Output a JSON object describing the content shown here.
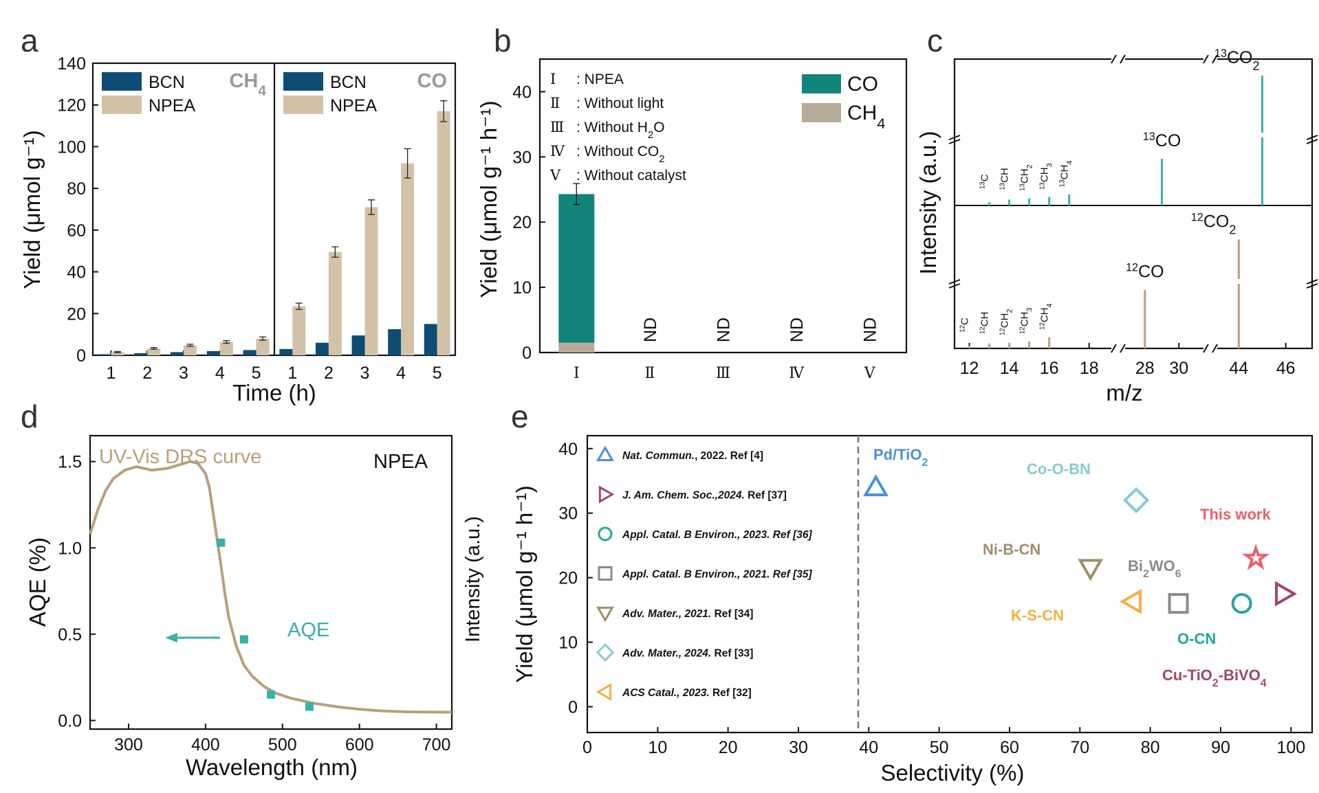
{
  "panels": [
    {
      "letter": "a"
    },
    {
      "letter": "b"
    },
    {
      "letter": "c"
    },
    {
      "letter": "d"
    },
    {
      "letter": "e"
    }
  ],
  "colors": {
    "bcn": "#0f4c75",
    "npea": "#d2c3a8",
    "co": "#12857a",
    "ch4": "#b8aa99",
    "teal": "#39b0a8",
    "tan": "#b7a07b",
    "dash": "#777777"
  },
  "chart_data": [
    {
      "panel": "a",
      "type": "bar",
      "ylabel": "Yield (μmol g⁻¹)",
      "xlabel": "Time (h)",
      "ylim": [
        0,
        140
      ],
      "yticks": [
        0,
        20,
        40,
        60,
        80,
        100,
        120,
        140
      ],
      "subpanels": [
        {
          "label": "CH₄",
          "categories": [
            "1",
            "2",
            "3",
            "4",
            "5"
          ],
          "series": [
            {
              "name": "BCN",
              "values": [
                0.5,
                1.0,
                1.5,
                2.0,
                2.5
              ]
            },
            {
              "name": "NPEA",
              "values": [
                1.5,
                3.3,
                4.8,
                6.4,
                8.0
              ]
            }
          ],
          "errors": [
            {
              "name": "NPEA",
              "values": [
                0.3,
                0.4,
                0.5,
                0.6,
                0.8
              ]
            }
          ]
        },
        {
          "label": "CO",
          "categories": [
            "1",
            "2",
            "3",
            "4",
            "5"
          ],
          "series": [
            {
              "name": "BCN",
              "values": [
                3,
                6,
                9.5,
                12.5,
                15
              ]
            },
            {
              "name": "NPEA",
              "values": [
                23.5,
                49.5,
                71,
                92,
                117
              ]
            }
          ],
          "errors": [
            {
              "name": "NPEA",
              "values": [
                1.5,
                2.5,
                3.5,
                7,
                5
              ]
            }
          ]
        }
      ]
    },
    {
      "panel": "b",
      "type": "bar",
      "ylabel": "Yield (μmol g⁻¹ h⁻¹)",
      "ylim": [
        0,
        45
      ],
      "yticks": [
        0,
        10,
        20,
        30,
        40
      ],
      "categories": [
        "Ⅰ",
        "Ⅱ",
        "Ⅲ",
        "Ⅳ",
        "Ⅴ"
      ],
      "series": [
        {
          "name": "CO",
          "values": [
            22.8,
            0,
            0,
            0,
            0
          ]
        },
        {
          "name": "CH₄",
          "values": [
            1.5,
            0,
            0,
            0,
            0
          ]
        }
      ],
      "error_total": 1.6,
      "nd_label": "ND",
      "conditions": [
        {
          "num": "Ⅰ",
          "text": ": NPEA"
        },
        {
          "num": "Ⅱ",
          "text": ": Without light"
        },
        {
          "num": "Ⅲ",
          "text": ": Without H",
          "sub": "2",
          "after": "O"
        },
        {
          "num": "Ⅳ",
          "text": ": Without CO",
          "sub": "2",
          "after": ""
        },
        {
          "num": "Ⅴ",
          "text": ": Without catalyst"
        }
      ]
    },
    {
      "panel": "c",
      "type": "bar",
      "ylabel": "Intensity (a.u.)",
      "xlabel": "m/z",
      "xticks": [
        "12",
        "14",
        "16",
        "18",
        "28",
        "30",
        "44",
        "46"
      ],
      "top": {
        "peaks": [
          {
            "mz": 13,
            "h": 0.025,
            "sup": "13",
            "base": "C",
            "sub": ""
          },
          {
            "mz": 14,
            "h": 0.045,
            "sup": "13",
            "base": "CH",
            "sub": ""
          },
          {
            "mz": 15,
            "h": 0.055,
            "sup": "13",
            "base": "CH",
            "sub": "2"
          },
          {
            "mz": 16,
            "h": 0.065,
            "sup": "13",
            "base": "CH",
            "sub": "3"
          },
          {
            "mz": 17,
            "h": 0.085,
            "sup": "13",
            "base": "CH",
            "sub": "4"
          },
          {
            "mz": 29,
            "h": 0.36,
            "sup": "13",
            "base": "CO",
            "sub": ""
          },
          {
            "mz": 45,
            "h": 1.0,
            "sup": "13",
            "base": "CO",
            "sub": "2"
          }
        ]
      },
      "bottom": {
        "peaks": [
          {
            "mz": 12,
            "h": 0.02,
            "sup": "12",
            "base": "C",
            "sub": ""
          },
          {
            "mz": 13,
            "h": 0.035,
            "sup": "12",
            "base": "CH",
            "sub": ""
          },
          {
            "mz": 14,
            "h": 0.04,
            "sup": "12",
            "base": "CH",
            "sub": "2"
          },
          {
            "mz": 15,
            "h": 0.05,
            "sup": "12",
            "base": "CH",
            "sub": "3"
          },
          {
            "mz": 16,
            "h": 0.08,
            "sup": "12",
            "base": "CH",
            "sub": "4"
          },
          {
            "mz": 28,
            "h": 0.42,
            "sup": "12",
            "base": "CO",
            "sub": ""
          },
          {
            "mz": 44,
            "h": 0.78,
            "sup": "12",
            "base": "CO",
            "sub": "2"
          }
        ]
      }
    },
    {
      "panel": "d",
      "type": "line",
      "xlabel": "Wavelength (nm)",
      "ylabel": "AQE (%)",
      "xlim": [
        250,
        720
      ],
      "ylim": [
        -0.05,
        1.65
      ],
      "xticks": [
        300,
        400,
        500,
        600,
        700
      ],
      "yticks": [
        0.0,
        0.5,
        1.0,
        1.5
      ],
      "curve_label": "UV-Vis DRS curve",
      "sample_label": "NPEA",
      "aqe_label": "AQE",
      "drs_curve": [
        [
          250,
          1.08
        ],
        [
          260,
          1.22
        ],
        [
          270,
          1.33
        ],
        [
          280,
          1.4
        ],
        [
          295,
          1.45
        ],
        [
          310,
          1.47
        ],
        [
          330,
          1.45
        ],
        [
          350,
          1.46
        ],
        [
          365,
          1.48
        ],
        [
          380,
          1.5
        ],
        [
          390,
          1.49
        ],
        [
          400,
          1.43
        ],
        [
          405,
          1.35
        ],
        [
          410,
          1.2
        ],
        [
          415,
          1.05
        ],
        [
          420,
          0.9
        ],
        [
          425,
          0.74
        ],
        [
          430,
          0.6
        ],
        [
          440,
          0.43
        ],
        [
          450,
          0.32
        ],
        [
          460,
          0.26
        ],
        [
          475,
          0.2
        ],
        [
          490,
          0.16
        ],
        [
          510,
          0.13
        ],
        [
          540,
          0.1
        ],
        [
          570,
          0.08
        ],
        [
          600,
          0.065
        ],
        [
          630,
          0.055
        ],
        [
          660,
          0.05
        ],
        [
          700,
          0.048
        ],
        [
          720,
          0.048
        ]
      ],
      "aqe_points": [
        [
          420,
          1.03
        ],
        [
          450,
          0.47
        ],
        [
          485,
          0.15
        ],
        [
          535,
          0.08
        ]
      ]
    },
    {
      "panel": "e",
      "type": "scatter",
      "xlabel": "Selectivity (%)",
      "ylabel_main": "Yield (μmol g⁻¹ h⁻¹)",
      "ylabel_back": "Intensity (a.u.)",
      "xlim": [
        0,
        103
      ],
      "ylim": [
        -4,
        42
      ],
      "xticks": [
        0,
        10,
        20,
        30,
        40,
        50,
        60,
        70,
        80,
        90,
        100
      ],
      "yticks": [
        0,
        10,
        20,
        30,
        40
      ],
      "divider_x": 38.5,
      "points": [
        {
          "name": "Pd/TiO₂",
          "x": 41,
          "y": 34,
          "marker": "triangle-up",
          "color": "#4a90d9"
        },
        {
          "name": "Co-O-BN",
          "x": 78,
          "y": 32,
          "marker": "diamond",
          "color": "#87cbd1"
        },
        {
          "name": "This work",
          "x": 95,
          "y": 23,
          "marker": "star",
          "color": "#e8606a"
        },
        {
          "name": "Ni-B-CN",
          "x": 71.5,
          "y": 21.5,
          "marker": "triangle-down",
          "color": "#a08e6c"
        },
        {
          "name": "Bi₂WO₆",
          "x": 84,
          "y": 16,
          "marker": "square",
          "color": "#8a8a8a"
        },
        {
          "name": "K-S-CN",
          "x": 77.5,
          "y": 16.3,
          "marker": "triangle-left",
          "color": "#f6b041"
        },
        {
          "name": "O-CN",
          "x": 93,
          "y": 16,
          "marker": "circle",
          "color": "#1fa89a"
        },
        {
          "name": "Cu-TiO₂-BiVO₄",
          "x": 99,
          "y": 17.5,
          "marker": "triangle-right",
          "color": "#a44760"
        }
      ],
      "legend": [
        {
          "journal": "Nat. Commun.",
          "rest": ", 2022. Ref [4]",
          "marker": "triangle-up",
          "color": "#4a90d9"
        },
        {
          "journal": "J. Am. Chem. Soc.,2024.",
          "rest": " Ref [37]",
          "marker": "triangle-right",
          "color": "#a44760"
        },
        {
          "journal": "Appl. Catal. B Environ., 2023. Ref [36]",
          "rest": "",
          "marker": "circle",
          "color": "#1fa89a"
        },
        {
          "journal": "Appl. Catal. B Environ., 2021. Ref [35]",
          "rest": "",
          "marker": "square",
          "color": "#8a8a8a"
        },
        {
          "journal": "Adv. Mater., 2021.",
          "rest": " Ref [34]",
          "marker": "triangle-down",
          "color": "#a08e6c"
        },
        {
          "journal": "Adv. Mater., 2024.",
          "rest": " Ref [33]",
          "marker": "diamond",
          "color": "#87cbd1"
        },
        {
          "journal": "ACS Catal., 2023.",
          "rest": " Ref [32]",
          "marker": "triangle-left",
          "color": "#f6b041"
        }
      ]
    }
  ]
}
